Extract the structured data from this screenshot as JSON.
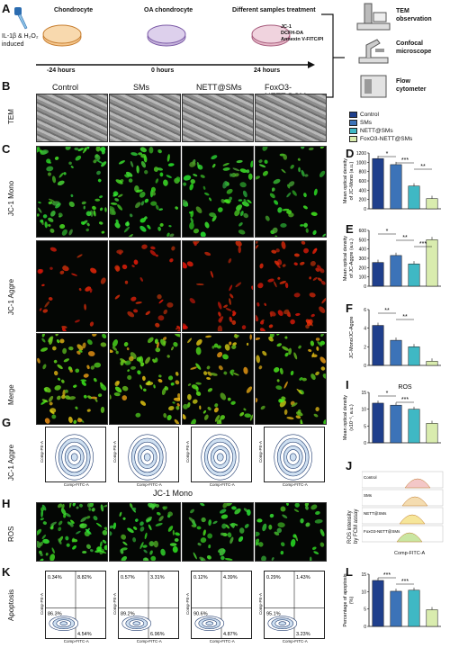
{
  "panels": {
    "A": "A",
    "B": "B",
    "C": "C",
    "D": "D",
    "E": "E",
    "F": "F",
    "G": "G",
    "H": "H",
    "I": "I",
    "J": "J",
    "K": "K",
    "L": "L"
  },
  "schema": {
    "induced": "IL-1β & H₂O₂\ninduced",
    "step1": "Chondrocyte",
    "step2": "OA chondrocyte",
    "step3": "Different samples treatment",
    "assays": "JC-1\nDCFH-DA\nAnnexin V-FITC/PI",
    "t1": "-24 hours",
    "t2": "0 hours",
    "t3": "24 hours",
    "out1": "TEM\nobservation",
    "out2": "Confocal\nmicroscope",
    "out3": "Flow\ncytometer"
  },
  "groups": [
    "Control",
    "SMs",
    "NETT@SMs",
    "FoxO3-NETT@SMs"
  ],
  "colors": {
    "Control": "#1f3f8c",
    "SMs": "#3c73b8",
    "NETT@SMs": "#3fb8c4",
    "FoxO3-NETT@SMs": "#d9ecae"
  },
  "rows": {
    "tem": "TEM",
    "jc1mono": "JC-1 Mono",
    "jc1aggre": "JC-1 Aggre",
    "merge": "Merge",
    "ros": "ROS",
    "apop": "Apoptosis",
    "jc1aggre_g": "JC-1 Aggre",
    "jc1mono_g": "JC-1 Mono"
  },
  "facs_axes": {
    "x": "Comp-FITC-A",
    "y": "Comp-PE-A",
    "ticks": [
      "10²",
      "10³",
      "10⁴"
    ]
  },
  "apoptosis_quadrants": [
    {
      "ul": "0.34%",
      "ur": "8.82%",
      "ll": "86.3%",
      "lr": "4.54%"
    },
    {
      "ul": "0.57%",
      "ur": "3.31%",
      "ll": "89.2%",
      "lr": "6.96%"
    },
    {
      "ul": "0.12%",
      "ur": "4.39%",
      "ll": "90.6%",
      "lr": "4.87%"
    },
    {
      "ul": "0.29%",
      "ur": "1.43%",
      "ll": "95.1%",
      "lr": "3.23%"
    }
  ],
  "ros_hist": {
    "title": "ROS intensity\nby FCM assay",
    "xlabel": "Comp-FITC-A",
    "rows": [
      "Control",
      "SMs",
      "NETT@SMs",
      "FoxO3-NETT@SMs"
    ]
  },
  "chart_data": [
    {
      "id": "D",
      "type": "bar",
      "categories": [
        "Control",
        "SMs",
        "NETT@SMs",
        "FoxO3-NETT@SMs"
      ],
      "values": [
        1080,
        950,
        490,
        220
      ],
      "ylim": [
        0,
        1200
      ],
      "yticks": [
        0,
        200,
        400,
        600,
        800,
        1000,
        1200
      ],
      "ylabel": "Mean optical density\nof JC-Mono (a.u.)",
      "sig": [
        "*",
        "***",
        "**"
      ]
    },
    {
      "id": "E",
      "type": "bar",
      "categories": [
        "Control",
        "SMs",
        "NETT@SMs",
        "FoxO3-NETT@SMs"
      ],
      "values": [
        255,
        330,
        240,
        500
      ],
      "ylim": [
        0,
        600
      ],
      "yticks": [
        0,
        100,
        200,
        300,
        400,
        500,
        600
      ],
      "ylabel": "Mean optical density\nof JC-Aggre (a.u.)",
      "sig": [
        "*",
        "**",
        "***"
      ]
    },
    {
      "id": "F",
      "type": "bar",
      "categories": [
        "Control",
        "SMs",
        "NETT@SMs",
        "FoxO3-NETT@SMs"
      ],
      "values": [
        4.3,
        2.7,
        2.0,
        0.45
      ],
      "ylim": [
        0,
        6
      ],
      "yticks": [
        0,
        2,
        4,
        6
      ],
      "ylabel": "JC-Mono/JC-Aggre",
      "sig": [
        "**",
        "**"
      ]
    },
    {
      "id": "I",
      "type": "bar",
      "title": "ROS",
      "categories": [
        "Control",
        "SMs",
        "NETT@SMs",
        "FoxO3-NETT@SMs"
      ],
      "values": [
        11.8,
        11.2,
        10.0,
        5.8
      ],
      "ylim": [
        0,
        15
      ],
      "yticks": [
        0,
        5,
        10,
        15
      ],
      "ylabel": "Mean optical density\n(x10⁻¹, a.u.)",
      "sig": [
        "*",
        "***"
      ]
    },
    {
      "id": "L",
      "type": "bar",
      "categories": [
        "Control",
        "SMs",
        "NETT@SMs",
        "FoxO3-NETT@SMs"
      ],
      "values": [
        13.2,
        10.1,
        10.4,
        4.8
      ],
      "ylim": [
        0,
        15
      ],
      "yticks": [
        0,
        5,
        10,
        15
      ],
      "ylabel": "Percentage of apoptosis\n(%)",
      "sig": [
        "***",
        "***"
      ]
    }
  ]
}
